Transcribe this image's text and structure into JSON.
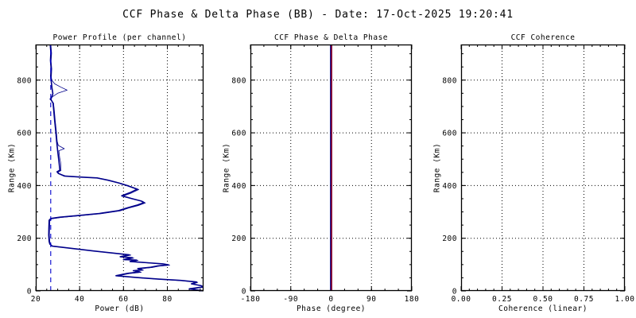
{
  "page_title": "CCF Phase & Delta Phase (BB) - Date: 17-Oct-2025 19:20:41",
  "colors": {
    "background": "#ffffff",
    "frame": "#000000",
    "grid": "#000000",
    "text": "#000000",
    "navy_line": "#00008B",
    "noise_floor_blue": "#0000CD",
    "delta_phase_red": "#C00000"
  },
  "chart_data": [
    {
      "type": "line",
      "title": "Power Profile (per channel)",
      "xlabel": "Power (dB)",
      "ylabel": "Range (Km)",
      "xlim": [
        20,
        96.5
      ],
      "ylim": [
        0,
        935
      ],
      "xticks": [
        20,
        40,
        60,
        80
      ],
      "xtick_labels": [
        "20",
        "40",
        "60",
        "80"
      ],
      "yticks": [
        0,
        200,
        400,
        600,
        800
      ],
      "ytick_labels": [
        "0",
        "200",
        "400",
        "600",
        "800"
      ],
      "x_minor_step": 5,
      "y_minor_step": 50,
      "grid": "dotted",
      "legend": "none",
      "series": [
        {
          "name": "channel-1",
          "color": "#00008B",
          "width": 1.6,
          "points": [
            [
              26.6,
              935
            ],
            [
              26.9,
              905
            ],
            [
              26.7,
              875
            ],
            [
              27.0,
              845
            ],
            [
              26.8,
              815
            ],
            [
              27.0,
              800
            ],
            [
              27.4,
              770
            ],
            [
              27.8,
              748
            ],
            [
              26.9,
              727
            ],
            [
              27.9,
              712
            ],
            [
              28.2,
              685
            ],
            [
              28.6,
              648
            ],
            [
              29.1,
              608
            ],
            [
              29.5,
              570
            ],
            [
              30.0,
              530
            ],
            [
              30.6,
              490
            ],
            [
              31.0,
              458
            ],
            [
              29.7,
              452
            ],
            [
              30.3,
              446
            ],
            [
              33,
              436
            ],
            [
              41,
              432
            ],
            [
              48,
              429
            ],
            [
              53,
              420
            ],
            [
              57.8,
              410
            ],
            [
              62,
              399
            ],
            [
              66.3,
              386
            ],
            [
              63,
              373
            ],
            [
              59.2,
              361
            ],
            [
              64,
              350
            ],
            [
              68.1,
              341
            ],
            [
              69.3,
              335
            ],
            [
              66,
              325
            ],
            [
              61.5,
              315
            ],
            [
              57.8,
              305
            ],
            [
              49,
              294
            ],
            [
              39,
              286
            ],
            [
              31,
              280
            ],
            [
              26.9,
              275
            ],
            [
              26.1,
              268
            ],
            [
              26.0,
              240
            ],
            [
              25.9,
              212
            ],
            [
              26.1,
              188
            ],
            [
              26.4,
              178
            ],
            [
              27.5,
              170
            ],
            [
              36,
              162
            ],
            [
              46,
              152
            ],
            [
              56,
              143
            ],
            [
              62.7,
              137
            ],
            [
              58.5,
              130
            ],
            [
              64,
              126
            ],
            [
              60,
              119
            ],
            [
              66,
              117
            ],
            [
              63,
              112
            ],
            [
              71,
              107
            ],
            [
              78,
              103
            ],
            [
              80.5,
              99
            ],
            [
              75.5,
              95
            ],
            [
              72.4,
              90
            ],
            [
              66.5,
              85
            ],
            [
              68.5,
              80
            ],
            [
              64.5,
              77
            ],
            [
              67.5,
              72
            ],
            [
              62,
              67
            ],
            [
              56.6,
              58
            ],
            [
              66,
              51
            ],
            [
              76,
              45
            ],
            [
              86,
              40
            ],
            [
              93.3,
              34
            ],
            [
              91,
              27
            ],
            [
              95.5,
              20
            ],
            [
              96,
              15
            ],
            [
              90,
              8
            ],
            [
              95.9,
              1
            ]
          ]
        },
        {
          "name": "channel-2",
          "color": "#00008B",
          "width": 0.8,
          "points": [
            [
              26.9,
              935
            ],
            [
              27.2,
              902
            ],
            [
              27.0,
              872
            ],
            [
              27.3,
              842
            ],
            [
              27.1,
              812
            ],
            [
              27.3,
              800
            ],
            [
              28.6,
              786
            ],
            [
              31.5,
              773
            ],
            [
              34.3,
              762
            ],
            [
              30.0,
              750
            ],
            [
              27.7,
              737
            ],
            [
              26.4,
              728
            ],
            [
              28.1,
              713
            ],
            [
              28.5,
              683
            ],
            [
              28.9,
              645
            ],
            [
              29.4,
              605
            ],
            [
              29.8,
              567
            ],
            [
              30.3,
              552
            ],
            [
              33.0,
              540
            ],
            [
              30.5,
              532
            ],
            [
              30.9,
              505
            ],
            [
              31.3,
              488
            ],
            [
              31.5,
              457
            ],
            [
              30.1,
              451
            ],
            [
              30.7,
              445
            ],
            [
              34,
              435
            ],
            [
              42,
              431
            ],
            [
              49,
              428
            ],
            [
              54,
              419
            ],
            [
              58.5,
              409
            ],
            [
              62.7,
              398
            ],
            [
              67,
              385
            ],
            [
              63.7,
              372
            ],
            [
              59.9,
              360
            ],
            [
              64.7,
              349
            ],
            [
              68.8,
              340
            ],
            [
              70,
              334
            ],
            [
              66.7,
              324
            ],
            [
              62.2,
              314
            ],
            [
              58.5,
              304
            ],
            [
              49.7,
              293
            ],
            [
              39.7,
              285
            ],
            [
              31.7,
              279
            ],
            [
              27.3,
              274
            ],
            [
              26.4,
              267
            ],
            [
              26.3,
              239
            ],
            [
              26.2,
              211
            ],
            [
              26.4,
              187
            ],
            [
              26.7,
              177
            ],
            [
              27.9,
              169
            ],
            [
              36.8,
              161
            ],
            [
              46.8,
              151
            ],
            [
              56.8,
              142
            ],
            [
              63.4,
              136
            ],
            [
              59.2,
              129
            ],
            [
              64.7,
              125
            ],
            [
              60.7,
              118
            ],
            [
              66.7,
              116
            ],
            [
              63.7,
              111
            ],
            [
              71.7,
              106
            ],
            [
              78.7,
              102
            ],
            [
              81.1,
              98
            ],
            [
              76.1,
              94
            ],
            [
              73.1,
              89
            ],
            [
              67.1,
              84
            ],
            [
              69.1,
              79
            ],
            [
              65.1,
              76
            ],
            [
              68.1,
              71
            ],
            [
              62.7,
              66
            ],
            [
              57.2,
              57
            ],
            [
              66.7,
              50
            ],
            [
              76.7,
              44
            ],
            [
              86.7,
              39
            ],
            [
              93.9,
              33
            ],
            [
              91.6,
              26
            ],
            [
              96,
              19
            ],
            [
              96.4,
              14
            ],
            [
              90.6,
              7
            ],
            [
              96.4,
              1
            ]
          ]
        },
        {
          "name": "noise-floor-dashed",
          "color": "#0000CD",
          "width": 1.1,
          "dash": "6 5",
          "points": [
            [
              26.8,
              0
            ],
            [
              26.8,
              935
            ]
          ]
        }
      ]
    },
    {
      "type": "line",
      "title": "CCF Phase & Delta Phase",
      "xlabel": "Phase (degree)",
      "ylabel": "Range (Km)",
      "xlim": [
        -180,
        180
      ],
      "ylim": [
        0,
        935
      ],
      "xticks": [
        -180,
        -90,
        0,
        90,
        180
      ],
      "xtick_labels": [
        "-180",
        "-90",
        "0",
        "90",
        "180"
      ],
      "yticks": [
        0,
        200,
        400,
        600,
        800
      ],
      "ytick_labels": [
        "0",
        "200",
        "400",
        "600",
        "800"
      ],
      "x_minor_step": 30,
      "y_minor_step": 50,
      "grid": "dotted",
      "legend": "none",
      "series": [
        {
          "name": "ccf-phase",
          "color": "#00008B",
          "width": 2.8,
          "points": [
            [
              0,
              0
            ],
            [
              0,
              935
            ]
          ]
        },
        {
          "name": "delta-phase",
          "color": "#C00000",
          "width": 1.2,
          "points": [
            [
              0.9,
              0
            ],
            [
              0.9,
              935
            ]
          ]
        }
      ]
    },
    {
      "type": "line",
      "title": "CCF Coherence",
      "xlabel": "Coherence (linear)",
      "ylabel": "Range (Km)",
      "xlim": [
        0,
        1
      ],
      "ylim": [
        0,
        935
      ],
      "xticks": [
        0,
        0.25,
        0.5,
        0.75,
        1
      ],
      "xtick_labels": [
        "0.00",
        "0.25",
        "0.50",
        "0.75",
        "1.00"
      ],
      "yticks": [
        0,
        200,
        400,
        600,
        800
      ],
      "ytick_labels": [
        "0",
        "200",
        "400",
        "600",
        "800"
      ],
      "x_minor_step": 0.05,
      "y_minor_step": 50,
      "grid": "dotted",
      "legend": "none",
      "series": []
    }
  ]
}
